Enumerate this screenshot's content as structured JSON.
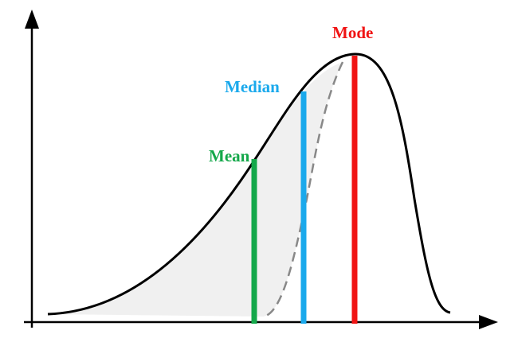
{
  "labels": {
    "mean": "Mean",
    "median": "Median",
    "mode": "Mode"
  }
}
